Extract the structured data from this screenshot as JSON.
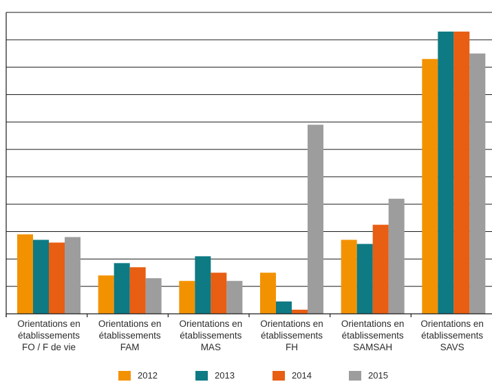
{
  "chart_data": {
    "type": "bar",
    "title": "",
    "xlabel": "",
    "ylabel": "",
    "ylim": [
      0,
      110
    ],
    "grid": true,
    "legend_position": "bottom",
    "categories": [
      {
        "line1": "Orientations en",
        "line2": "établissements",
        "line3": "FO / F de vie"
      },
      {
        "line1": "Orientations en",
        "line2": "établissements",
        "line3": "FAM"
      },
      {
        "line1": "Orientations en",
        "line2": "établissements",
        "line3": "MAS"
      },
      {
        "line1": "Orientations en",
        "line2": "établissements",
        "line3": "FH"
      },
      {
        "line1": "Orientations en",
        "line2": "établissements",
        "line3": "SAMSAH"
      },
      {
        "line1": "Orientations en",
        "line2": "établissements",
        "line3": "SAVS"
      }
    ],
    "series": [
      {
        "name": "2012",
        "color": "#f39200",
        "values": [
          29,
          14,
          12,
          15,
          27,
          93
        ]
      },
      {
        "name": "2013",
        "color": "#0e7a84",
        "values": [
          27,
          18.5,
          21,
          4.5,
          25.5,
          103
        ]
      },
      {
        "name": "2014",
        "color": "#e85e12",
        "values": [
          26,
          17,
          15,
          1.5,
          32.5,
          103
        ]
      },
      {
        "name": "2015",
        "color": "#9d9d9d",
        "values": [
          28,
          13,
          12,
          69,
          42,
          95
        ]
      }
    ]
  }
}
